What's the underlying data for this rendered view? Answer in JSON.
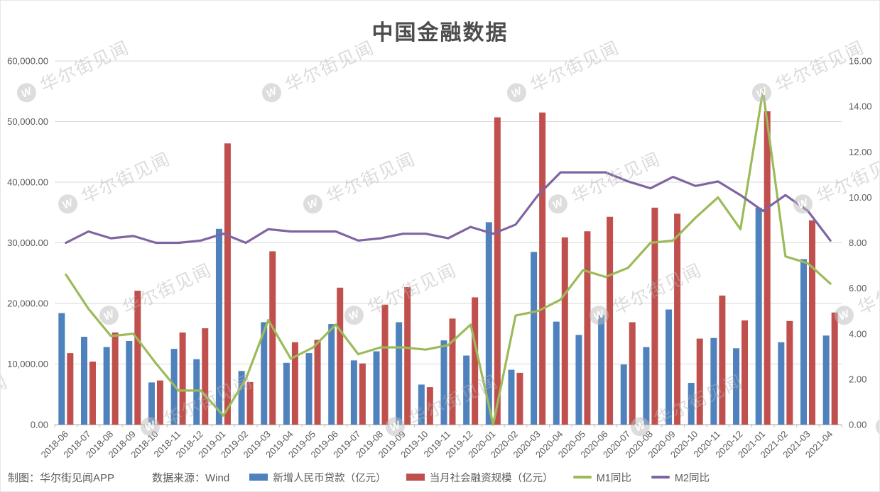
{
  "page": {
    "title": "中国金融数据"
  },
  "footer": {
    "credit": "制图：华尔街见闻APP",
    "source": "数据来源：Wind"
  },
  "watermark": {
    "text": "华尔街见闻",
    "logo_letter": "W"
  },
  "colors": {
    "loans_blue": "#4F81BD",
    "tsf_red": "#C0504D",
    "m1_green": "#9BBB59",
    "m2_purple": "#8064A2",
    "grid": "#D9D9D9",
    "axis": "#A6A6A6",
    "tick": "#BFBFBF",
    "label_text": "#595959",
    "title_text": "#4D4D4D"
  },
  "chart_data": {
    "type": "bar+line combo",
    "title": "中国金融数据",
    "grid": true,
    "legend_position": "bottom",
    "categories": [
      "2018-06",
      "2018-07",
      "2018-08",
      "2018-09",
      "2018-10",
      "2018-11",
      "2018-12",
      "2019-01",
      "2019-02",
      "2019-03",
      "2019-04",
      "2019-05",
      "2019-06",
      "2019-07",
      "2019-08",
      "2019-09",
      "2019-10",
      "2019-11",
      "2019-12",
      "2020-01",
      "2020-02",
      "2020-03",
      "2020-04",
      "2020-05",
      "2020-06",
      "2020-07",
      "2020-08",
      "2020-09",
      "2020-10",
      "2020-11",
      "2020-12",
      "2021-01",
      "2021-02",
      "2021-03",
      "2021-04"
    ],
    "series": [
      {
        "name": "新增人民币贷款（亿元）",
        "type": "bar",
        "axis": "left",
        "color": "#4F81BD",
        "values": [
          18400,
          14500,
          12800,
          13800,
          6970,
          12500,
          10800,
          32300,
          8858,
          16900,
          10200,
          11800,
          16600,
          10600,
          12100,
          16900,
          6613,
          13900,
          11400,
          33400,
          9057,
          28500,
          17000,
          14800,
          18100,
          9927,
          12800,
          19000,
          6898,
          14300,
          12600,
          35800,
          13600,
          27300,
          14700
        ]
      },
      {
        "name": "当月社会融资规模（亿元）",
        "type": "bar",
        "axis": "left",
        "color": "#C0504D",
        "values": [
          11800,
          10400,
          15200,
          22100,
          7288,
          15200,
          15900,
          46400,
          7030,
          28600,
          13600,
          14000,
          22600,
          10100,
          19800,
          22700,
          6189,
          17500,
          21000,
          50700,
          8554,
          51500,
          30900,
          31900,
          34300,
          16900,
          35800,
          34800,
          14200,
          21300,
          17200,
          51700,
          17100,
          33700,
          18500
        ]
      },
      {
        "name": "M1同比",
        "type": "line",
        "axis": "right",
        "color": "#9BBB59",
        "values": [
          6.6,
          5.1,
          3.9,
          4.0,
          2.7,
          1.5,
          1.5,
          0.4,
          2.0,
          4.6,
          2.9,
          3.4,
          4.4,
          3.1,
          3.4,
          3.4,
          3.3,
          3.5,
          4.4,
          0.0,
          4.8,
          5.0,
          5.5,
          6.8,
          6.5,
          6.9,
          8.0,
          8.1,
          9.1,
          10.0,
          8.6,
          14.7,
          7.4,
          7.1,
          6.2
        ]
      },
      {
        "name": "M2同比",
        "type": "line",
        "axis": "right",
        "color": "#8064A2",
        "values": [
          8.0,
          8.5,
          8.2,
          8.3,
          8.0,
          8.0,
          8.1,
          8.4,
          8.0,
          8.6,
          8.5,
          8.5,
          8.5,
          8.1,
          8.2,
          8.4,
          8.4,
          8.2,
          8.7,
          8.4,
          8.8,
          10.1,
          11.1,
          11.1,
          11.1,
          10.7,
          10.4,
          10.9,
          10.5,
          10.7,
          10.1,
          9.4,
          10.1,
          9.4,
          8.1
        ]
      }
    ],
    "left_axis": {
      "min": 0,
      "max": 60000,
      "step": 10000,
      "tick_labels": [
        "0.00",
        "10,000.00",
        "20,000.00",
        "30,000.00",
        "40,000.00",
        "50,000.00",
        "60,000.00"
      ]
    },
    "right_axis": {
      "min": 0,
      "max": 16,
      "step": 2,
      "tick_labels": [
        "0.00",
        "2.00",
        "4.00",
        "6.00",
        "8.00",
        "10.00",
        "12.00",
        "14.00",
        "16.00"
      ]
    }
  }
}
